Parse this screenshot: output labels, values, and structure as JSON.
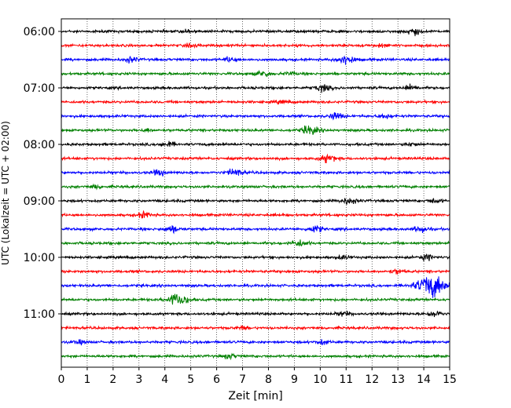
{
  "chart_data": {
    "type": "line",
    "title": "",
    "xlabel": "Zeit  [min]",
    "ylabel": "UTC (Lokalzeit = UTC + 02:00)",
    "xlim": [
      0,
      15
    ],
    "x_ticks": [
      "0",
      "1",
      "2",
      "3",
      "4",
      "5",
      "6",
      "7",
      "8",
      "9",
      "10",
      "11",
      "12",
      "13",
      "14",
      "15"
    ],
    "y_ticks": [
      "06:00",
      "07:00",
      "08:00",
      "09:00",
      "10:00",
      "11:00"
    ],
    "start_time": "06:00",
    "trace_interval_min": 15,
    "trace_count": 24,
    "trace_colors": [
      "#000000",
      "#ff0000",
      "#0000ff",
      "#008000"
    ],
    "grid": "vertical dotted lines at each minute",
    "events": [
      {
        "trace": 0,
        "minute": 13.6,
        "amplitude": 0.6
      },
      {
        "trace": 0,
        "minute": 4.9,
        "amplitude": 0.3
      },
      {
        "trace": 1,
        "minute": 12.4,
        "amplitude": 0.3
      },
      {
        "trace": 1,
        "minute": 5.0,
        "amplitude": 0.3
      },
      {
        "trace": 2,
        "minute": 11.0,
        "amplitude": 0.9
      },
      {
        "trace": 2,
        "minute": 2.7,
        "amplitude": 0.5
      },
      {
        "trace": 2,
        "minute": 6.5,
        "amplitude": 0.4
      },
      {
        "trace": 3,
        "minute": 7.8,
        "amplitude": 0.6
      },
      {
        "trace": 3,
        "minute": 8.8,
        "amplitude": 0.3
      },
      {
        "trace": 4,
        "minute": 10.1,
        "amplitude": 0.6
      },
      {
        "trace": 4,
        "minute": 13.5,
        "amplitude": 0.5
      },
      {
        "trace": 5,
        "minute": 8.5,
        "amplitude": 0.3
      },
      {
        "trace": 6,
        "minute": 10.6,
        "amplitude": 0.6
      },
      {
        "trace": 6,
        "minute": 12.5,
        "amplitude": 0.4
      },
      {
        "trace": 7,
        "minute": 9.6,
        "amplitude": 0.8
      },
      {
        "trace": 7,
        "minute": 3.3,
        "amplitude": 0.3
      },
      {
        "trace": 8,
        "minute": 4.1,
        "amplitude": 0.5
      },
      {
        "trace": 8,
        "minute": 13.5,
        "amplitude": 0.3
      },
      {
        "trace": 9,
        "minute": 10.3,
        "amplitude": 0.7
      },
      {
        "trace": 10,
        "minute": 6.7,
        "amplitude": 0.7
      },
      {
        "trace": 10,
        "minute": 3.8,
        "amplitude": 0.5
      },
      {
        "trace": 11,
        "minute": 1.3,
        "amplitude": 0.4
      },
      {
        "trace": 12,
        "minute": 11.1,
        "amplitude": 0.6
      },
      {
        "trace": 12,
        "minute": 14.4,
        "amplitude": 0.4
      },
      {
        "trace": 13,
        "minute": 3.2,
        "amplitude": 0.5
      },
      {
        "trace": 14,
        "minute": 4.3,
        "amplitude": 0.6
      },
      {
        "trace": 14,
        "minute": 9.8,
        "amplitude": 0.6
      },
      {
        "trace": 14,
        "minute": 13.9,
        "amplitude": 0.6
      },
      {
        "trace": 15,
        "minute": 9.2,
        "amplitude": 0.6
      },
      {
        "trace": 16,
        "minute": 14.1,
        "amplitude": 0.5
      },
      {
        "trace": 16,
        "minute": 10.9,
        "amplitude": 0.3
      },
      {
        "trace": 17,
        "minute": 13.0,
        "amplitude": 0.4
      },
      {
        "trace": 18,
        "minute": 14.3,
        "amplitude": 2.2
      },
      {
        "trace": 19,
        "minute": 4.5,
        "amplitude": 1.2
      },
      {
        "trace": 20,
        "minute": 14.4,
        "amplitude": 0.6
      },
      {
        "trace": 20,
        "minute": 10.9,
        "amplitude": 0.4
      },
      {
        "trace": 21,
        "minute": 7.0,
        "amplitude": 0.3
      },
      {
        "trace": 22,
        "minute": 10.1,
        "amplitude": 0.4
      },
      {
        "trace": 22,
        "minute": 0.7,
        "amplitude": 0.3
      },
      {
        "trace": 23,
        "minute": 6.5,
        "amplitude": 0.4
      }
    ]
  }
}
